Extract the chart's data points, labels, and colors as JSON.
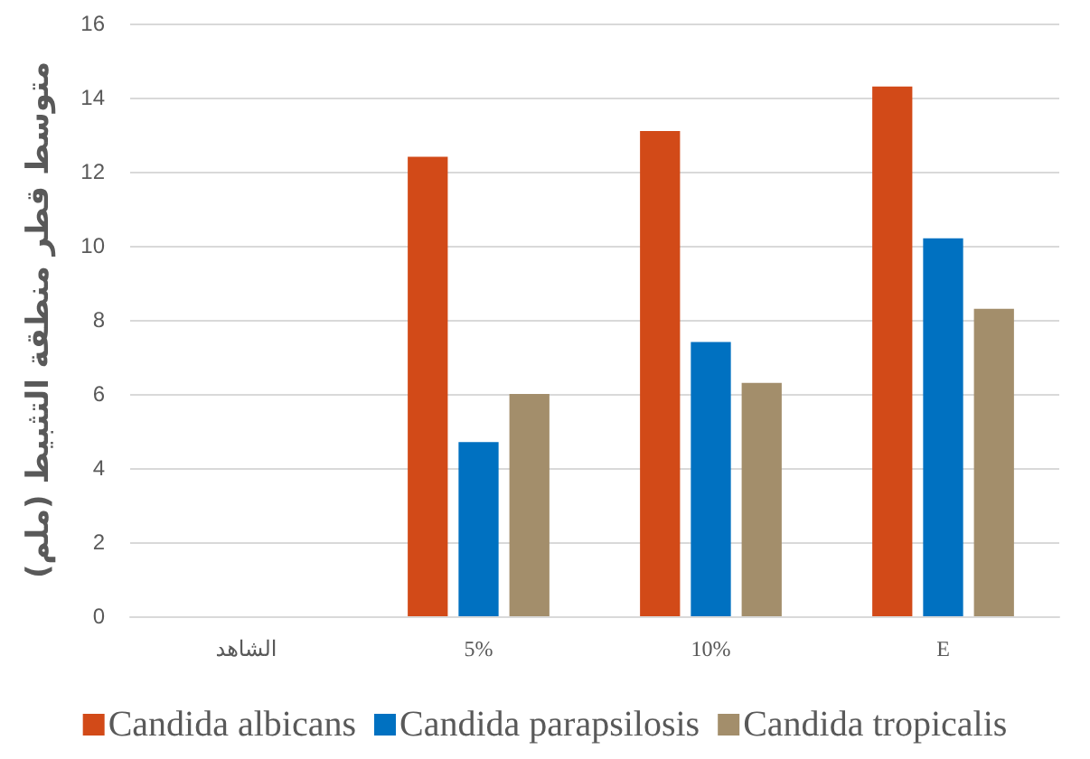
{
  "chart_data": {
    "type": "bar",
    "ylabel": "متوسط قطر منطقة التثبيط (ملم)",
    "categories": [
      "الشاهد",
      "5%",
      "10%",
      "E"
    ],
    "series": [
      {
        "name": "Candida albicans",
        "color": "#d24a18",
        "values": [
          0,
          12.4,
          13.1,
          14.3
        ]
      },
      {
        "name": "Candida parapsilosis",
        "color": "#0071c1",
        "values": [
          0,
          4.7,
          7.4,
          10.2
        ]
      },
      {
        "name": "Candida tropicalis",
        "color": "#a38e6b",
        "values": [
          0,
          6.0,
          6.3,
          8.3
        ]
      }
    ],
    "ylim": [
      0,
      16
    ],
    "yticks": [
      0,
      2,
      4,
      6,
      8,
      10,
      12,
      14,
      16
    ],
    "grid": "y",
    "legend": "bottom"
  }
}
